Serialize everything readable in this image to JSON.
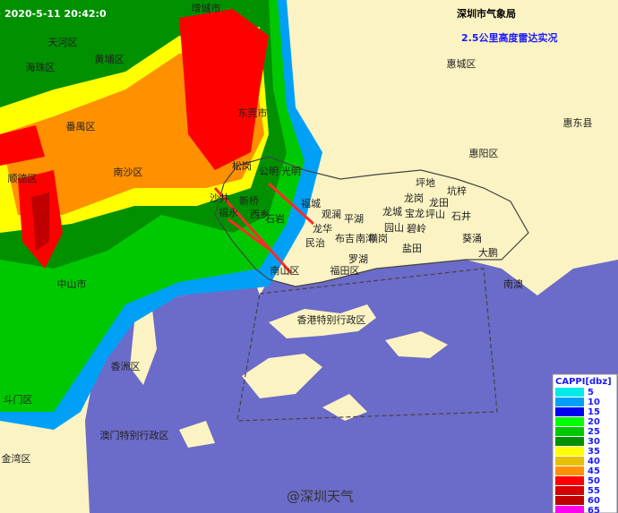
{
  "header": {
    "timestamp": "2020-5-11 20:42:0",
    "agency": "深圳市气象局",
    "product": "2.5公里高度雷达实况"
  },
  "places": [
    "增城市",
    "天河区",
    "黄埔区",
    "海珠区",
    "番禺区",
    "东莞市",
    "惠城区",
    "惠东县",
    "惠阳区",
    "南沙区",
    "顺德区",
    "中山市",
    "香洲区",
    "斗门区",
    "澳门特别行政区",
    "金湾区",
    "香港特别行政区",
    "福田区",
    "南山区",
    "公明",
    "光明",
    "松岗",
    "沙井",
    "福永",
    "新桥",
    "西乡",
    "石岩",
    "福城",
    "观澜",
    "龙华",
    "民治",
    "平湖",
    "布吉",
    "南湾",
    "罗湖",
    "盐田",
    "龙城",
    "龙岗",
    "龙田",
    "坪地",
    "坑梓",
    "坪山",
    "石井",
    "宝龙",
    "园山",
    "横岗",
    "碧岭",
    "葵涌",
    "大鹏",
    "南澳"
  ],
  "legend": {
    "title": "CAPPI[dbz]",
    "items": [
      {
        "value": 5,
        "color": "#00eaea"
      },
      {
        "value": 10,
        "color": "#00a0f6"
      },
      {
        "value": 15,
        "color": "#0000f6"
      },
      {
        "value": 20,
        "color": "#00ff00"
      },
      {
        "value": 25,
        "color": "#00c800"
      },
      {
        "value": 30,
        "color": "#009000"
      },
      {
        "value": 35,
        "color": "#ffff00"
      },
      {
        "value": 40,
        "color": "#e7c000"
      },
      {
        "value": 45,
        "color": "#ff9000"
      },
      {
        "value": 50,
        "color": "#ff0000"
      },
      {
        "value": 55,
        "color": "#d60000"
      },
      {
        "value": 60,
        "color": "#c00000"
      },
      {
        "value": 65,
        "color": "#ff00f0"
      }
    ]
  },
  "watermark": "@深圳天气"
}
